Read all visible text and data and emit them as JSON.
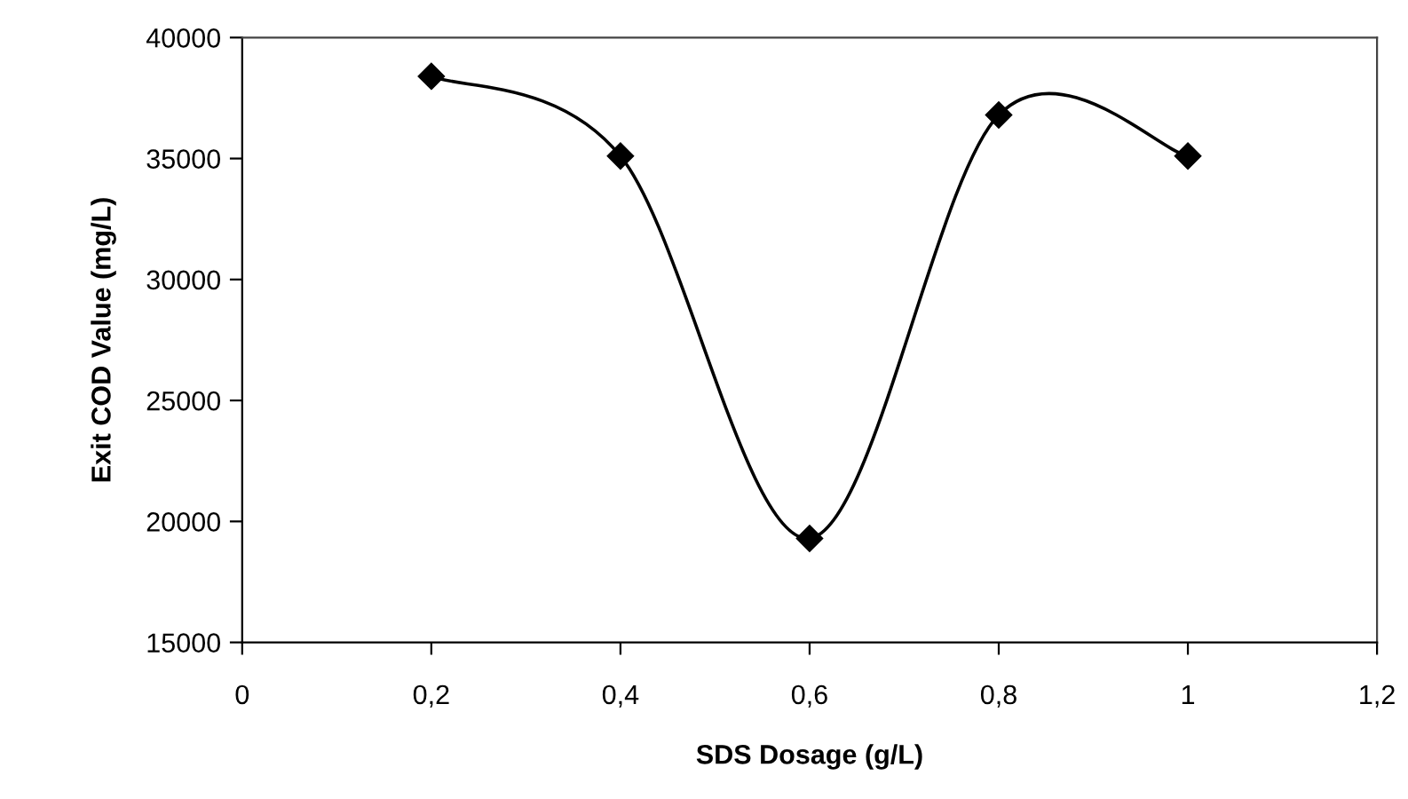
{
  "chart_data": {
    "type": "line",
    "xlabel": "SDS Dosage (g/L)",
    "ylabel": "Exit COD Value (mg/L)",
    "x": [
      0.2,
      0.4,
      0.6,
      0.8,
      1.0
    ],
    "series": [
      {
        "color": "#000000",
        "values": [
          38400,
          35100,
          19300,
          36800,
          35100
        ]
      }
    ],
    "xlim": [
      0,
      1.2
    ],
    "xticks": [
      {
        "value": 0,
        "label": "0"
      },
      {
        "value": 0.2,
        "label": "0,2"
      },
      {
        "value": 0.4,
        "label": "0,4"
      },
      {
        "value": 0.6,
        "label": "0,6"
      },
      {
        "value": 0.8,
        "label": "0,8"
      },
      {
        "value": 1.0,
        "label": "1"
      },
      {
        "value": 1.2,
        "label": "1,2"
      }
    ],
    "ylim": [
      15000,
      40000
    ],
    "yticks": [
      15000,
      20000,
      25000,
      30000,
      35000,
      40000
    ],
    "marker": "diamond",
    "line_style": "solid",
    "grid": false,
    "legend": false
  }
}
